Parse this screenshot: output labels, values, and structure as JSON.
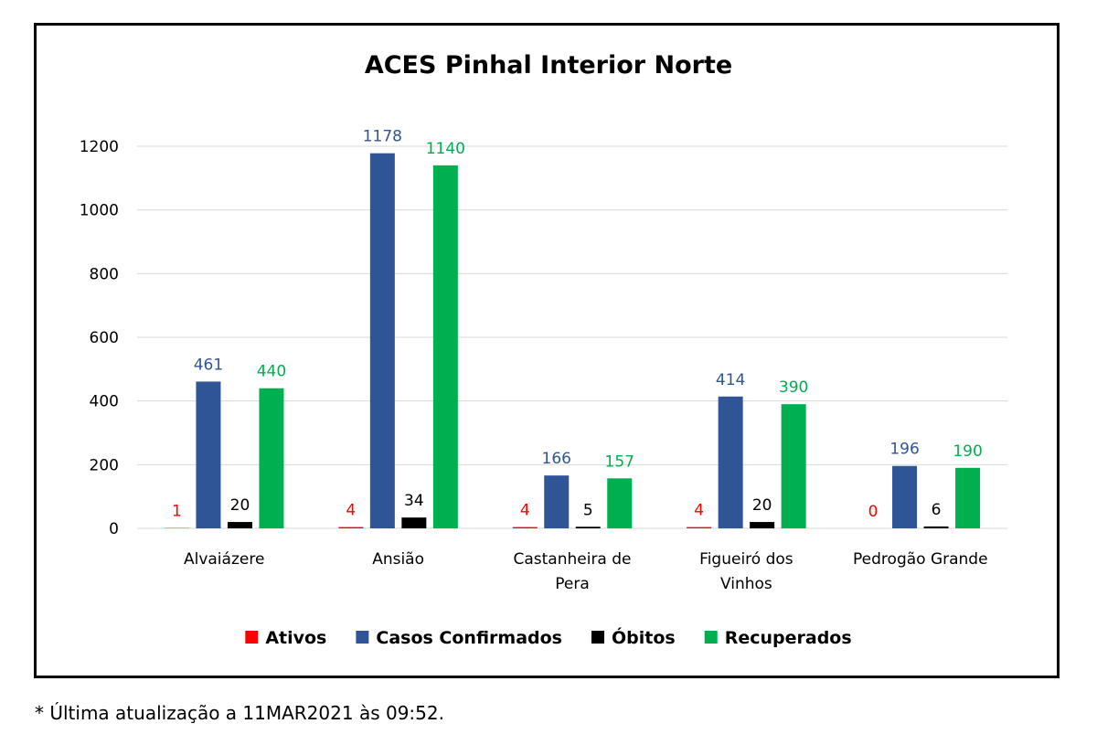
{
  "footnote": "* Última atualização a 11MAR2021 às 09:52.",
  "chart_data": {
    "type": "bar",
    "title": "ACES Pinhal Interior Norte",
    "xlabel": "",
    "ylabel": "",
    "ylim": [
      0,
      1200
    ],
    "yticks": [
      0,
      200,
      400,
      600,
      800,
      1000,
      1200
    ],
    "grid": true,
    "legend_position": "bottom",
    "categories": [
      [
        "Alvaiázere"
      ],
      [
        "Ansião"
      ],
      [
        "Castanheira de",
        "Pera"
      ],
      [
        "Figueiró dos",
        "Vinhos"
      ],
      [
        "Pedrogão Grande"
      ]
    ],
    "series": [
      {
        "name": "Ativos",
        "color": "#ff0000",
        "label_color": "#ff0000",
        "values": [
          1,
          4,
          4,
          4,
          0
        ]
      },
      {
        "name": "Casos Confirmados",
        "color": "#2f5597",
        "label_color": "#2f5597",
        "values": [
          461,
          1178,
          166,
          414,
          196
        ]
      },
      {
        "name": "Óbitos",
        "color": "#000000",
        "label_color": "#000000",
        "values": [
          20,
          34,
          5,
          20,
          6
        ]
      },
      {
        "name": "Recuperados",
        "color": "#00b050",
        "label_color": "#00b050",
        "values": [
          440,
          1140,
          157,
          390,
          190
        ]
      }
    ]
  }
}
